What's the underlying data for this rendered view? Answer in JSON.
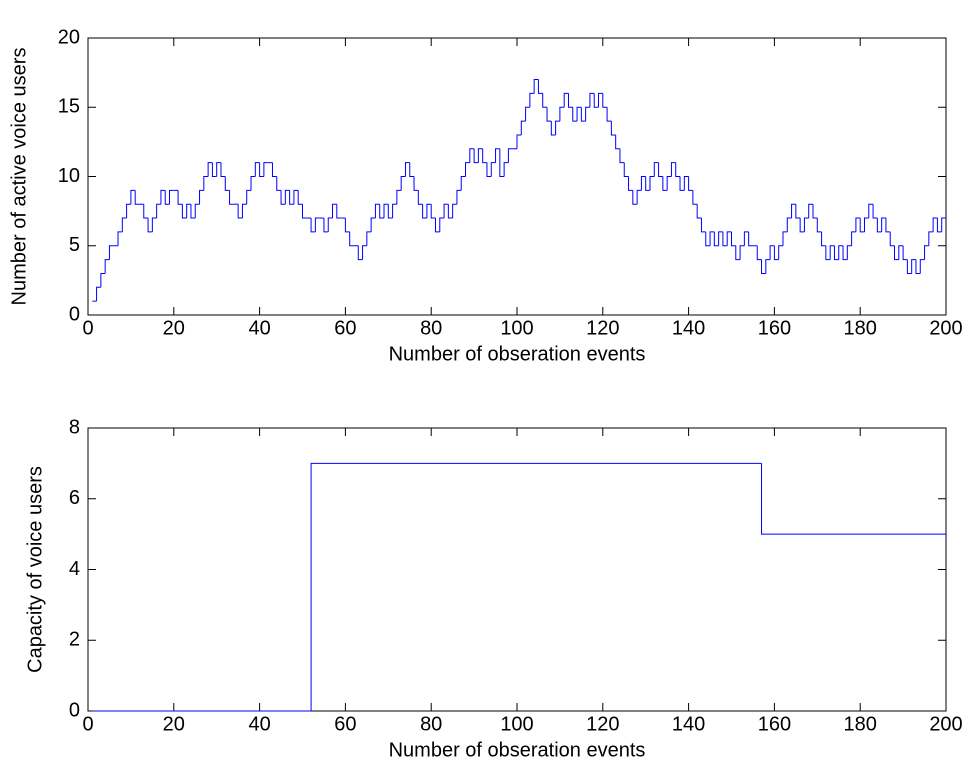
{
  "chart_data": [
    {
      "type": "line",
      "drawstyle": "steps-post",
      "color": "#0000ff",
      "xlabel": "Number of obseration events",
      "ylabel": "Number of active voice users",
      "xlim": [
        0,
        200
      ],
      "ylim": [
        0,
        20
      ],
      "xticks": [
        0,
        20,
        40,
        60,
        80,
        100,
        120,
        140,
        160,
        180,
        200
      ],
      "yticks": [
        0,
        5,
        10,
        15,
        20
      ],
      "x": [
        1,
        2,
        3,
        4,
        5,
        6,
        7,
        8,
        9,
        10,
        11,
        12,
        13,
        14,
        15,
        16,
        17,
        18,
        19,
        20,
        21,
        22,
        23,
        24,
        25,
        26,
        27,
        28,
        29,
        30,
        31,
        32,
        33,
        34,
        35,
        36,
        37,
        38,
        39,
        40,
        41,
        42,
        43,
        44,
        45,
        46,
        47,
        48,
        49,
        50,
        51,
        52,
        53,
        54,
        55,
        56,
        57,
        58,
        59,
        60,
        61,
        62,
        63,
        64,
        65,
        66,
        67,
        68,
        69,
        70,
        71,
        72,
        73,
        74,
        75,
        76,
        77,
        78,
        79,
        80,
        81,
        82,
        83,
        84,
        85,
        86,
        87,
        88,
        89,
        90,
        91,
        92,
        93,
        94,
        95,
        96,
        97,
        98,
        99,
        100,
        101,
        102,
        103,
        104,
        105,
        106,
        107,
        108,
        109,
        110,
        111,
        112,
        113,
        114,
        115,
        116,
        117,
        118,
        119,
        120,
        121,
        122,
        123,
        124,
        125,
        126,
        127,
        128,
        129,
        130,
        131,
        132,
        133,
        134,
        135,
        136,
        137,
        138,
        139,
        140,
        141,
        142,
        143,
        144,
        145,
        146,
        147,
        148,
        149,
        150,
        151,
        152,
        153,
        154,
        155,
        156,
        157,
        158,
        159,
        160,
        161,
        162,
        163,
        164,
        165,
        166,
        167,
        168,
        169,
        170,
        171,
        172,
        173,
        174,
        175,
        176,
        177,
        178,
        179,
        180,
        181,
        182,
        183,
        184,
        185,
        186,
        187,
        188,
        189,
        190,
        191,
        192,
        193,
        194,
        195,
        196,
        197,
        198,
        199,
        200
      ],
      "values": [
        1,
        2,
        3,
        4,
        5,
        5,
        6,
        7,
        8,
        9,
        8,
        8,
        7,
        6,
        7,
        8,
        9,
        8,
        9,
        9,
        8,
        7,
        8,
        7,
        8,
        9,
        10,
        11,
        10,
        11,
        10,
        9,
        8,
        8,
        7,
        8,
        9,
        10,
        11,
        10,
        11,
        11,
        10,
        9,
        8,
        9,
        8,
        9,
        8,
        7,
        7,
        6,
        7,
        7,
        6,
        7,
        8,
        7,
        7,
        6,
        5,
        5,
        4,
        5,
        6,
        7,
        8,
        7,
        8,
        7,
        8,
        9,
        10,
        11,
        10,
        9,
        8,
        7,
        8,
        7,
        6,
        7,
        8,
        7,
        8,
        9,
        10,
        11,
        12,
        11,
        12,
        11,
        10,
        11,
        12,
        10,
        11,
        12,
        12,
        13,
        14,
        15,
        16,
        17,
        16,
        15,
        14,
        13,
        14,
        15,
        16,
        15,
        14,
        15,
        14,
        15,
        16,
        15,
        16,
        15,
        14,
        13,
        12,
        11,
        10,
        9,
        8,
        9,
        10,
        9,
        10,
        11,
        10,
        9,
        10,
        11,
        10,
        9,
        10,
        9,
        8,
        7,
        6,
        5,
        6,
        5,
        6,
        5,
        6,
        5,
        4,
        5,
        6,
        5,
        5,
        4,
        3,
        4,
        5,
        4,
        5,
        6,
        7,
        8,
        7,
        6,
        7,
        8,
        7,
        6,
        5,
        4,
        5,
        4,
        5,
        4,
        5,
        6,
        7,
        6,
        7,
        8,
        7,
        6,
        7,
        6,
        5,
        4,
        5,
        4,
        3,
        4,
        3,
        4,
        5,
        6,
        7,
        6,
        7,
        7
      ]
    },
    {
      "type": "line",
      "drawstyle": "steps-post",
      "color": "#0000ff",
      "xlabel": "Number of obseration events",
      "ylabel": "Capacity of voice users",
      "xlim": [
        0,
        200
      ],
      "ylim": [
        0,
        8
      ],
      "xticks": [
        0,
        20,
        40,
        60,
        80,
        100,
        120,
        140,
        160,
        180,
        200
      ],
      "yticks": [
        0,
        2,
        4,
        6,
        8
      ],
      "x": [
        1,
        52,
        157,
        200
      ],
      "values": [
        0,
        7,
        5,
        5
      ]
    }
  ]
}
